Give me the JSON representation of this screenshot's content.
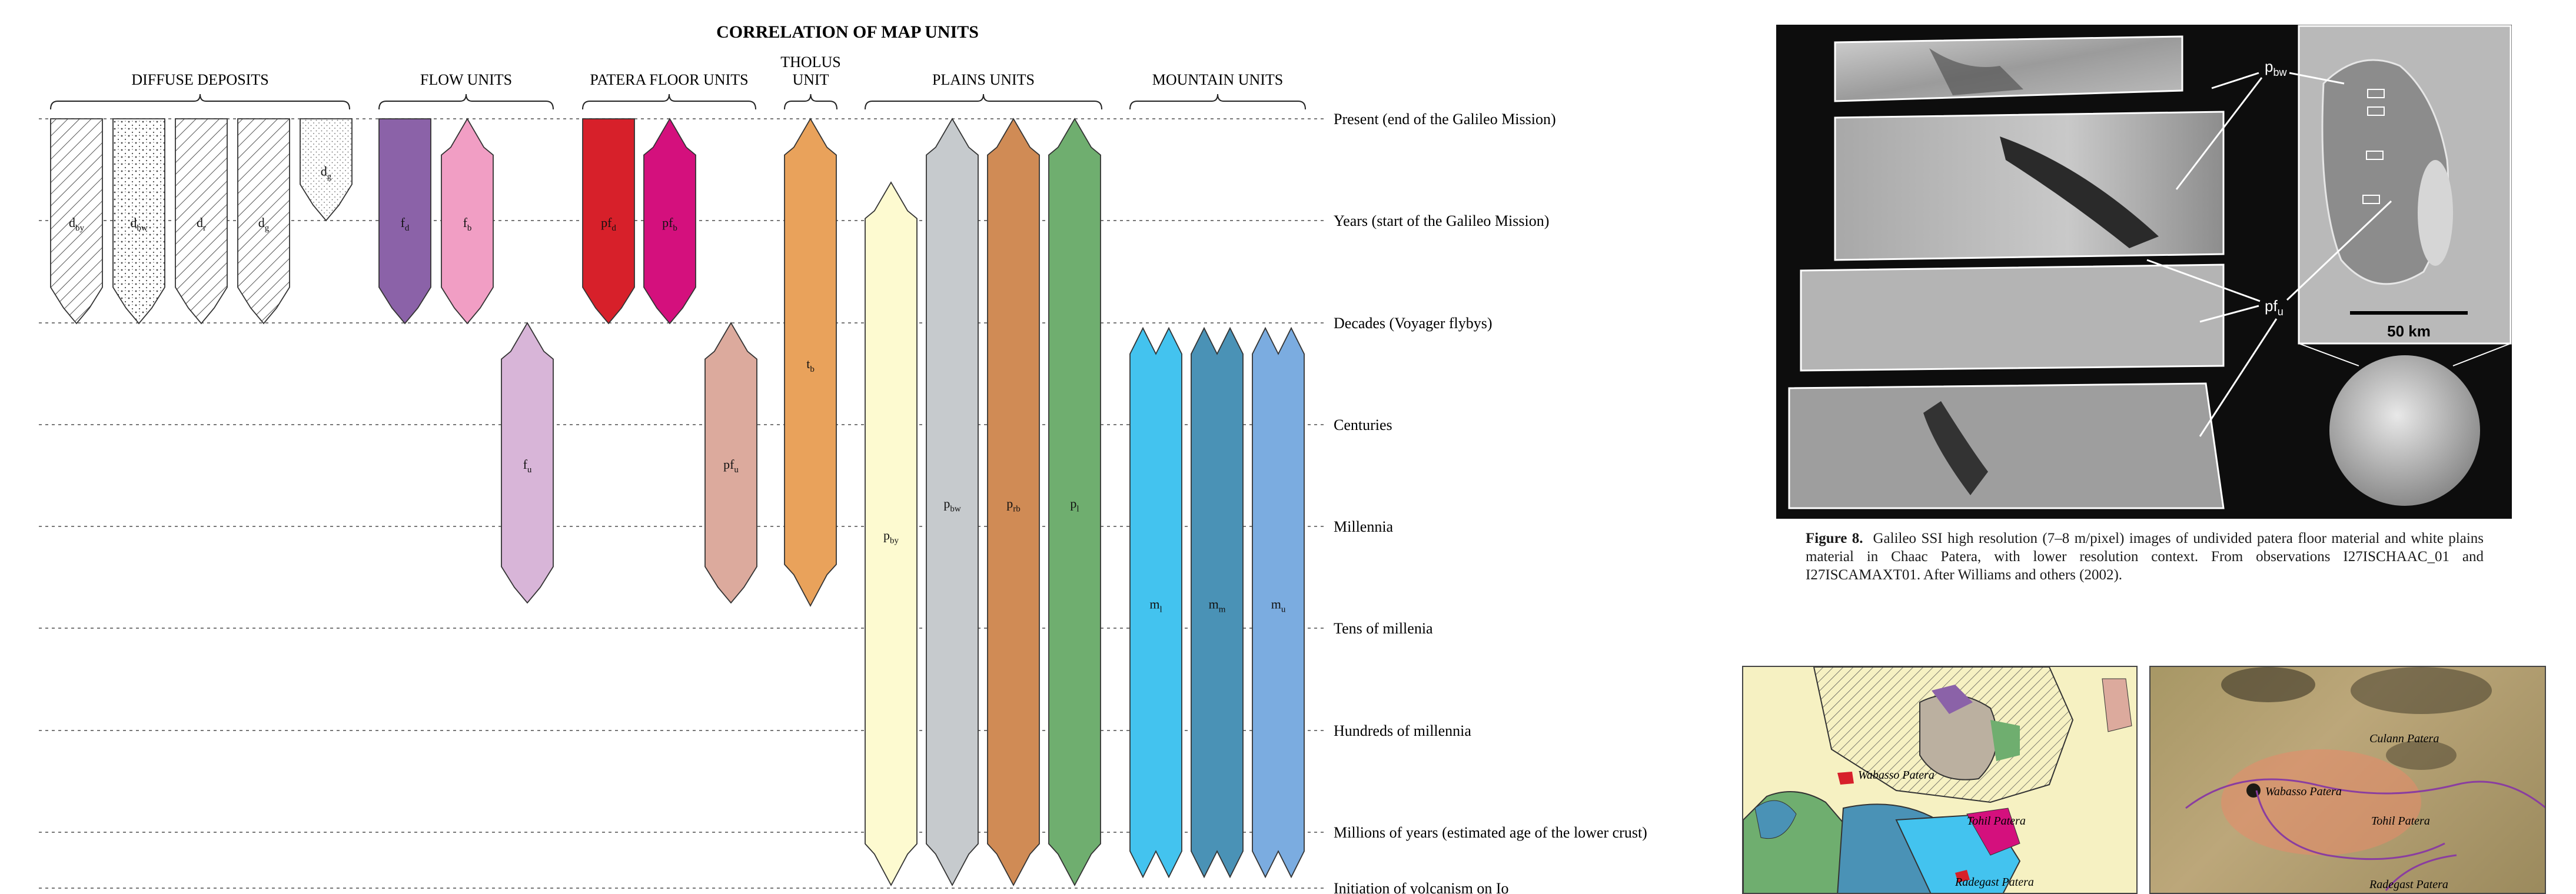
{
  "correlation": {
    "title": "CORRELATION OF MAP UNITS",
    "groups": [
      {
        "label": "DIFFUSE DEPOSITS"
      },
      {
        "label": "FLOW UNITS"
      },
      {
        "label": "PATERA FLOOR UNITS"
      },
      {
        "label": "THOLUS",
        "label2": "UNIT"
      },
      {
        "label": "PLAINS UNITS"
      },
      {
        "label": "MOUNTAIN UNITS"
      }
    ],
    "time_lines": [
      "Present (end of the Galileo Mission)",
      "Years (start of the Galileo Mission)",
      "Decades (Voyager flybys)",
      "Centuries",
      "Millennia",
      "Tens of millenia",
      "Hundreds of millennia",
      "Millions of years (estimated age of the lower crust)",
      "Initiation of volcanism on Io"
    ],
    "units": [
      {
        "label": "d",
        "sub": "by",
        "color": "#ffffff",
        "pattern": "hatch-right"
      },
      {
        "label": "d",
        "sub": "bw",
        "color": "#ffffff",
        "pattern": "dots"
      },
      {
        "label": "d",
        "sub": "r",
        "color": "#ffffff",
        "pattern": "hatch-right"
      },
      {
        "label": "d",
        "sub": "g",
        "color": "#ffffff",
        "pattern": "hatch-right"
      },
      {
        "label": "d",
        "sub": "g",
        "color": "#ffffff",
        "pattern": "dots-fine"
      },
      {
        "label": "f",
        "sub": "d",
        "color": "#8b62a8"
      },
      {
        "label": "f",
        "sub": "b",
        "color": "#f19ec4"
      },
      {
        "label": "f",
        "sub": "u",
        "color": "#d8b5d8"
      },
      {
        "label": "pf",
        "sub": "d",
        "color": "#d7202a"
      },
      {
        "label": "pf",
        "sub": "b",
        "color": "#d4107d"
      },
      {
        "label": "pf",
        "sub": "u",
        "color": "#dcaa9d"
      },
      {
        "label": "t",
        "sub": "b",
        "color": "#e9a25b"
      },
      {
        "label": "p",
        "sub": "by",
        "color": "#fdfad0"
      },
      {
        "label": "p",
        "sub": "bw",
        "color": "#c6cacd"
      },
      {
        "label": "p",
        "sub": "rb",
        "color": "#d08b55"
      },
      {
        "label": "p",
        "sub": "l",
        "color": "#6fae6f"
      },
      {
        "label": "m",
        "sub": "l",
        "color": "#43c3ef"
      },
      {
        "label": "m",
        "sub": "m",
        "color": "#4a92b6"
      },
      {
        "label": "m",
        "sub": "u",
        "color": "#7bace0"
      }
    ]
  },
  "figure": {
    "labels": {
      "pbw": "p",
      "pbw_sub": "bw",
      "pfu": "pf",
      "pfu_sub": "u"
    },
    "scale_bar": "50 km",
    "caption_lead": "Figure 8.",
    "caption_text": "Galileo SSI high resolution (7–8 m/pixel) images of undivided patera floor material and white plains material in Chaac Patera, with lower resolution context. From observations I27ISCHAAC_01 and I27ISCAMAXT01. After Williams and others (2002)."
  },
  "maps": {
    "left_labels": [
      "Wabasso Patera",
      "Tohil Patera",
      "Radegast Patera"
    ],
    "right_labels": [
      "Culann Patera",
      "Wabasso Patera",
      "Tohil Patera",
      "Radegast Patera"
    ]
  }
}
